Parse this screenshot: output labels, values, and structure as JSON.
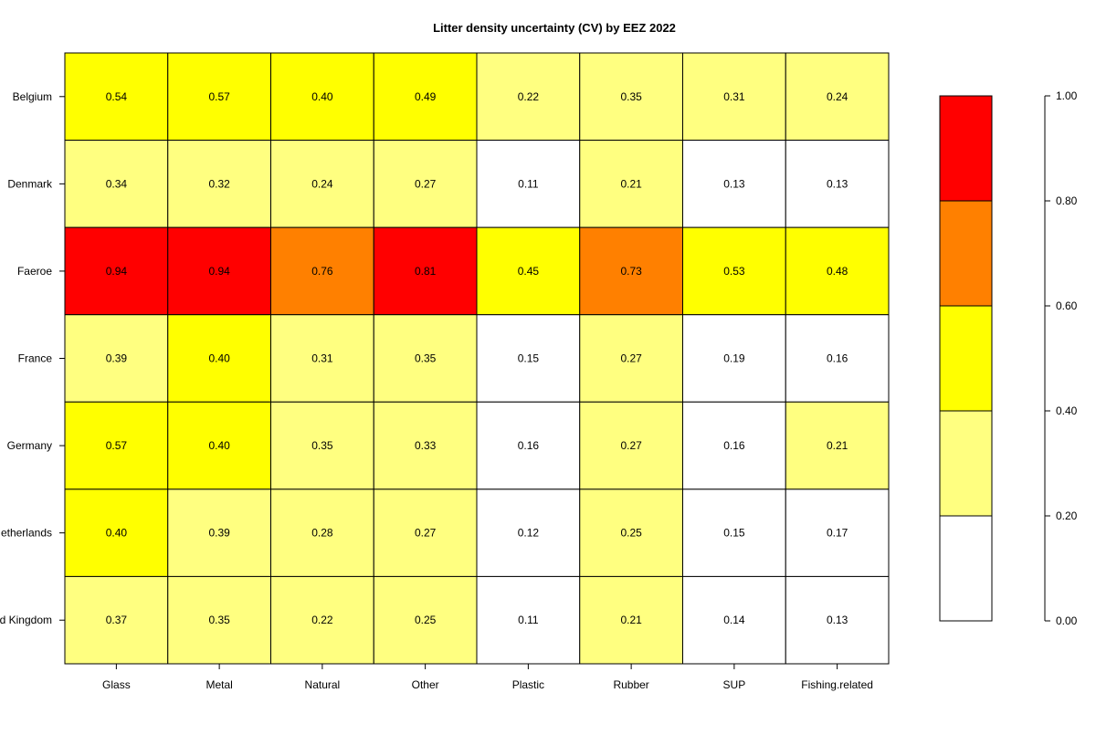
{
  "chart_data": {
    "type": "heatmap",
    "title": "Litter density uncertainty (CV) by EEZ 2022",
    "rows": [
      "Belgium",
      "Denmark",
      "Faeroe",
      "France",
      "Germany",
      "Netherlands",
      "United Kingdom"
    ],
    "columns": [
      "Glass",
      "Metal",
      "Natural",
      "Other",
      "Plastic",
      "Rubber",
      "SUP",
      "Fishing.related"
    ],
    "values": [
      [
        0.54,
        0.57,
        0.4,
        0.49,
        0.22,
        0.35,
        0.31,
        0.24
      ],
      [
        0.34,
        0.32,
        0.24,
        0.27,
        0.11,
        0.21,
        0.13,
        0.13
      ],
      [
        0.94,
        0.94,
        0.76,
        0.81,
        0.45,
        0.73,
        0.53,
        0.48
      ],
      [
        0.39,
        0.4,
        0.31,
        0.35,
        0.15,
        0.27,
        0.19,
        0.16
      ],
      [
        0.57,
        0.4,
        0.35,
        0.33,
        0.16,
        0.27,
        0.16,
        0.21
      ],
      [
        0.4,
        0.39,
        0.28,
        0.27,
        0.12,
        0.25,
        0.15,
        0.17
      ],
      [
        0.37,
        0.35,
        0.22,
        0.25,
        0.11,
        0.21,
        0.14,
        0.13
      ]
    ],
    "value_labels": [
      [
        "0.54",
        "0.57",
        "0.40",
        "0.49",
        "0.22",
        "0.35",
        "0.31",
        "0.24"
      ],
      [
        "0.34",
        "0.32",
        "0.24",
        "0.27",
        "0.11",
        "0.21",
        "0.13",
        "0.13"
      ],
      [
        "0.94",
        "0.94",
        "0.76",
        "0.81",
        "0.45",
        "0.73",
        "0.53",
        "0.48"
      ],
      [
        "0.39",
        "0.40",
        "0.31",
        "0.35",
        "0.15",
        "0.27",
        "0.19",
        "0.16"
      ],
      [
        "0.57",
        "0.40",
        "0.35",
        "0.33",
        "0.16",
        "0.27",
        "0.16",
        "0.21"
      ],
      [
        "0.40",
        "0.39",
        "0.28",
        "0.27",
        "0.12",
        "0.25",
        "0.15",
        "0.17"
      ],
      [
        "0.37",
        "0.35",
        "0.22",
        "0.25",
        "0.11",
        "0.21",
        "0.14",
        "0.13"
      ]
    ],
    "legend": {
      "breaks": [
        0.0,
        0.2,
        0.4,
        0.6,
        0.8,
        1.0
      ],
      "tick_labels": [
        "0.00",
        "0.20",
        "0.40",
        "0.60",
        "0.80",
        "1.00"
      ],
      "colors": [
        "#ffffff",
        "#ffff80",
        "#ffff00",
        "#ff8000",
        "#ff0000"
      ],
      "placement": "right"
    },
    "grid": false
  }
}
